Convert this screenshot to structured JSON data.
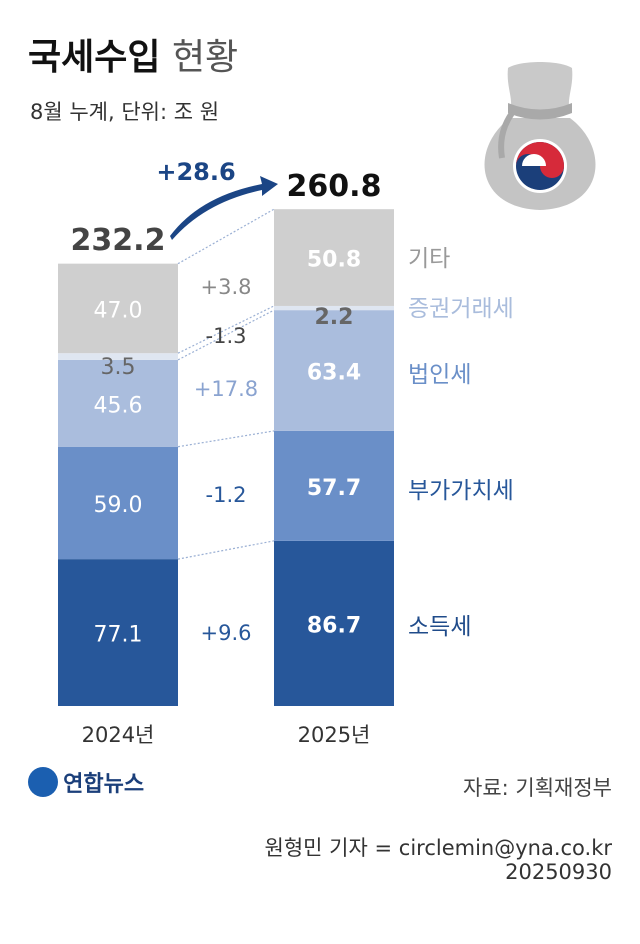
{
  "title_bold": "국세수입",
  "title_light": "현황",
  "subtitle": "8월 누계, 단위: 조 원",
  "chart_data": {
    "type": "bar",
    "stacked": true,
    "categories": [
      "2024년",
      "2025년"
    ],
    "totals": [
      "232.2",
      "260.8"
    ],
    "total_change": "+28.6",
    "series": [
      {
        "name": "소득세",
        "values": [
          77.1,
          86.7
        ],
        "labels": [
          "77.1",
          "86.7"
        ],
        "change": "+9.6",
        "color": "#27579a",
        "label_color": "#1f4b8a"
      },
      {
        "name": "부가가치세",
        "values": [
          59.0,
          57.7
        ],
        "labels": [
          "59.0",
          "57.7"
        ],
        "change": "-1.2",
        "color": "#6a8fc8",
        "label_color": "#27579a"
      },
      {
        "name": "법인세",
        "values": [
          45.6,
          63.4
        ],
        "labels": [
          "45.6",
          "63.4"
        ],
        "change": "+17.8",
        "color": "#aabddd",
        "label_color": "#6a8fc8"
      },
      {
        "name": "증권거래세",
        "values": [
          3.5,
          2.2
        ],
        "labels": [
          "3.5",
          "2.2"
        ],
        "change": "-1.3",
        "color": "#dfe6f1",
        "label_color": "#a9bcdc"
      },
      {
        "name": "기타",
        "values": [
          47.0,
          50.8
        ],
        "labels": [
          "47.0",
          "50.8"
        ],
        "change": "+3.8",
        "color": "#cfcfcf",
        "label_color": "#999999"
      }
    ]
  },
  "logo_text": "연합뉴스",
  "source": "자료: 기획재정부",
  "credit": "원형민 기자 = circlemin@yna.co.kr",
  "date": "20250930",
  "icon": "money-bag-icon"
}
